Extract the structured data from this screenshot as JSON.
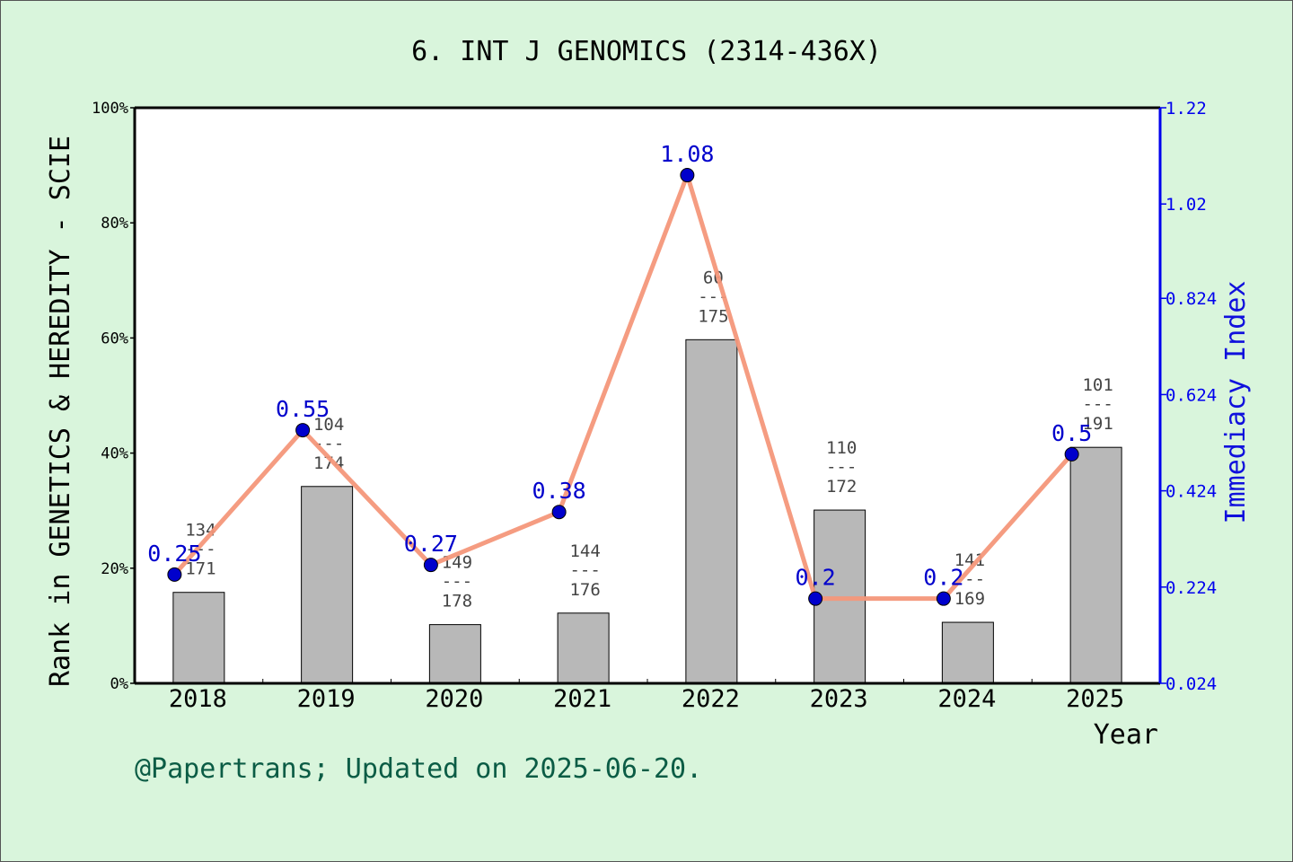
{
  "chart_data": {
    "type": "bar+line",
    "title": "6. INT J GENOMICS (2314-436X)",
    "xlabel": "Year",
    "ylabel": "Rank in GENETICS & HEREDITY - SCIE",
    "y2label": "Immediacy Index",
    "categories": [
      "2018",
      "2019",
      "2020",
      "2021",
      "2022",
      "2023",
      "2024",
      "2025"
    ],
    "yticks": [
      "0%",
      "20%",
      "40%",
      "60%",
      "80%",
      "100%"
    ],
    "ylim": [
      0,
      100
    ],
    "y2ticks": [
      "0.024",
      "0.224",
      "0.424",
      "0.624",
      "0.824",
      "1.02",
      "1.22"
    ],
    "y2lim": [
      0.024,
      1.22
    ],
    "bars": {
      "rank": [
        134,
        104,
        149,
        144,
        60,
        110,
        141,
        101
      ],
      "total": [
        171,
        174,
        178,
        176,
        175,
        172,
        169,
        191
      ],
      "percent": [
        15.8,
        34.2,
        10.2,
        12.2,
        59.7,
        30.1,
        10.6,
        41.0
      ],
      "color": "#b8b8b8"
    },
    "line": {
      "labels": [
        "0.25",
        "0.55",
        "0.27",
        "0.38",
        "1.08",
        "0.2",
        "0.2",
        "0.5"
      ],
      "values": [
        0.25,
        0.55,
        0.27,
        0.38,
        1.08,
        0.2,
        0.2,
        0.5
      ],
      "line_color": "#f4977a",
      "marker_color": "#0000cc"
    },
    "rank_separator": "---",
    "grid": false
  },
  "footer": "@Papertrans; Updated on 2025-06-20."
}
